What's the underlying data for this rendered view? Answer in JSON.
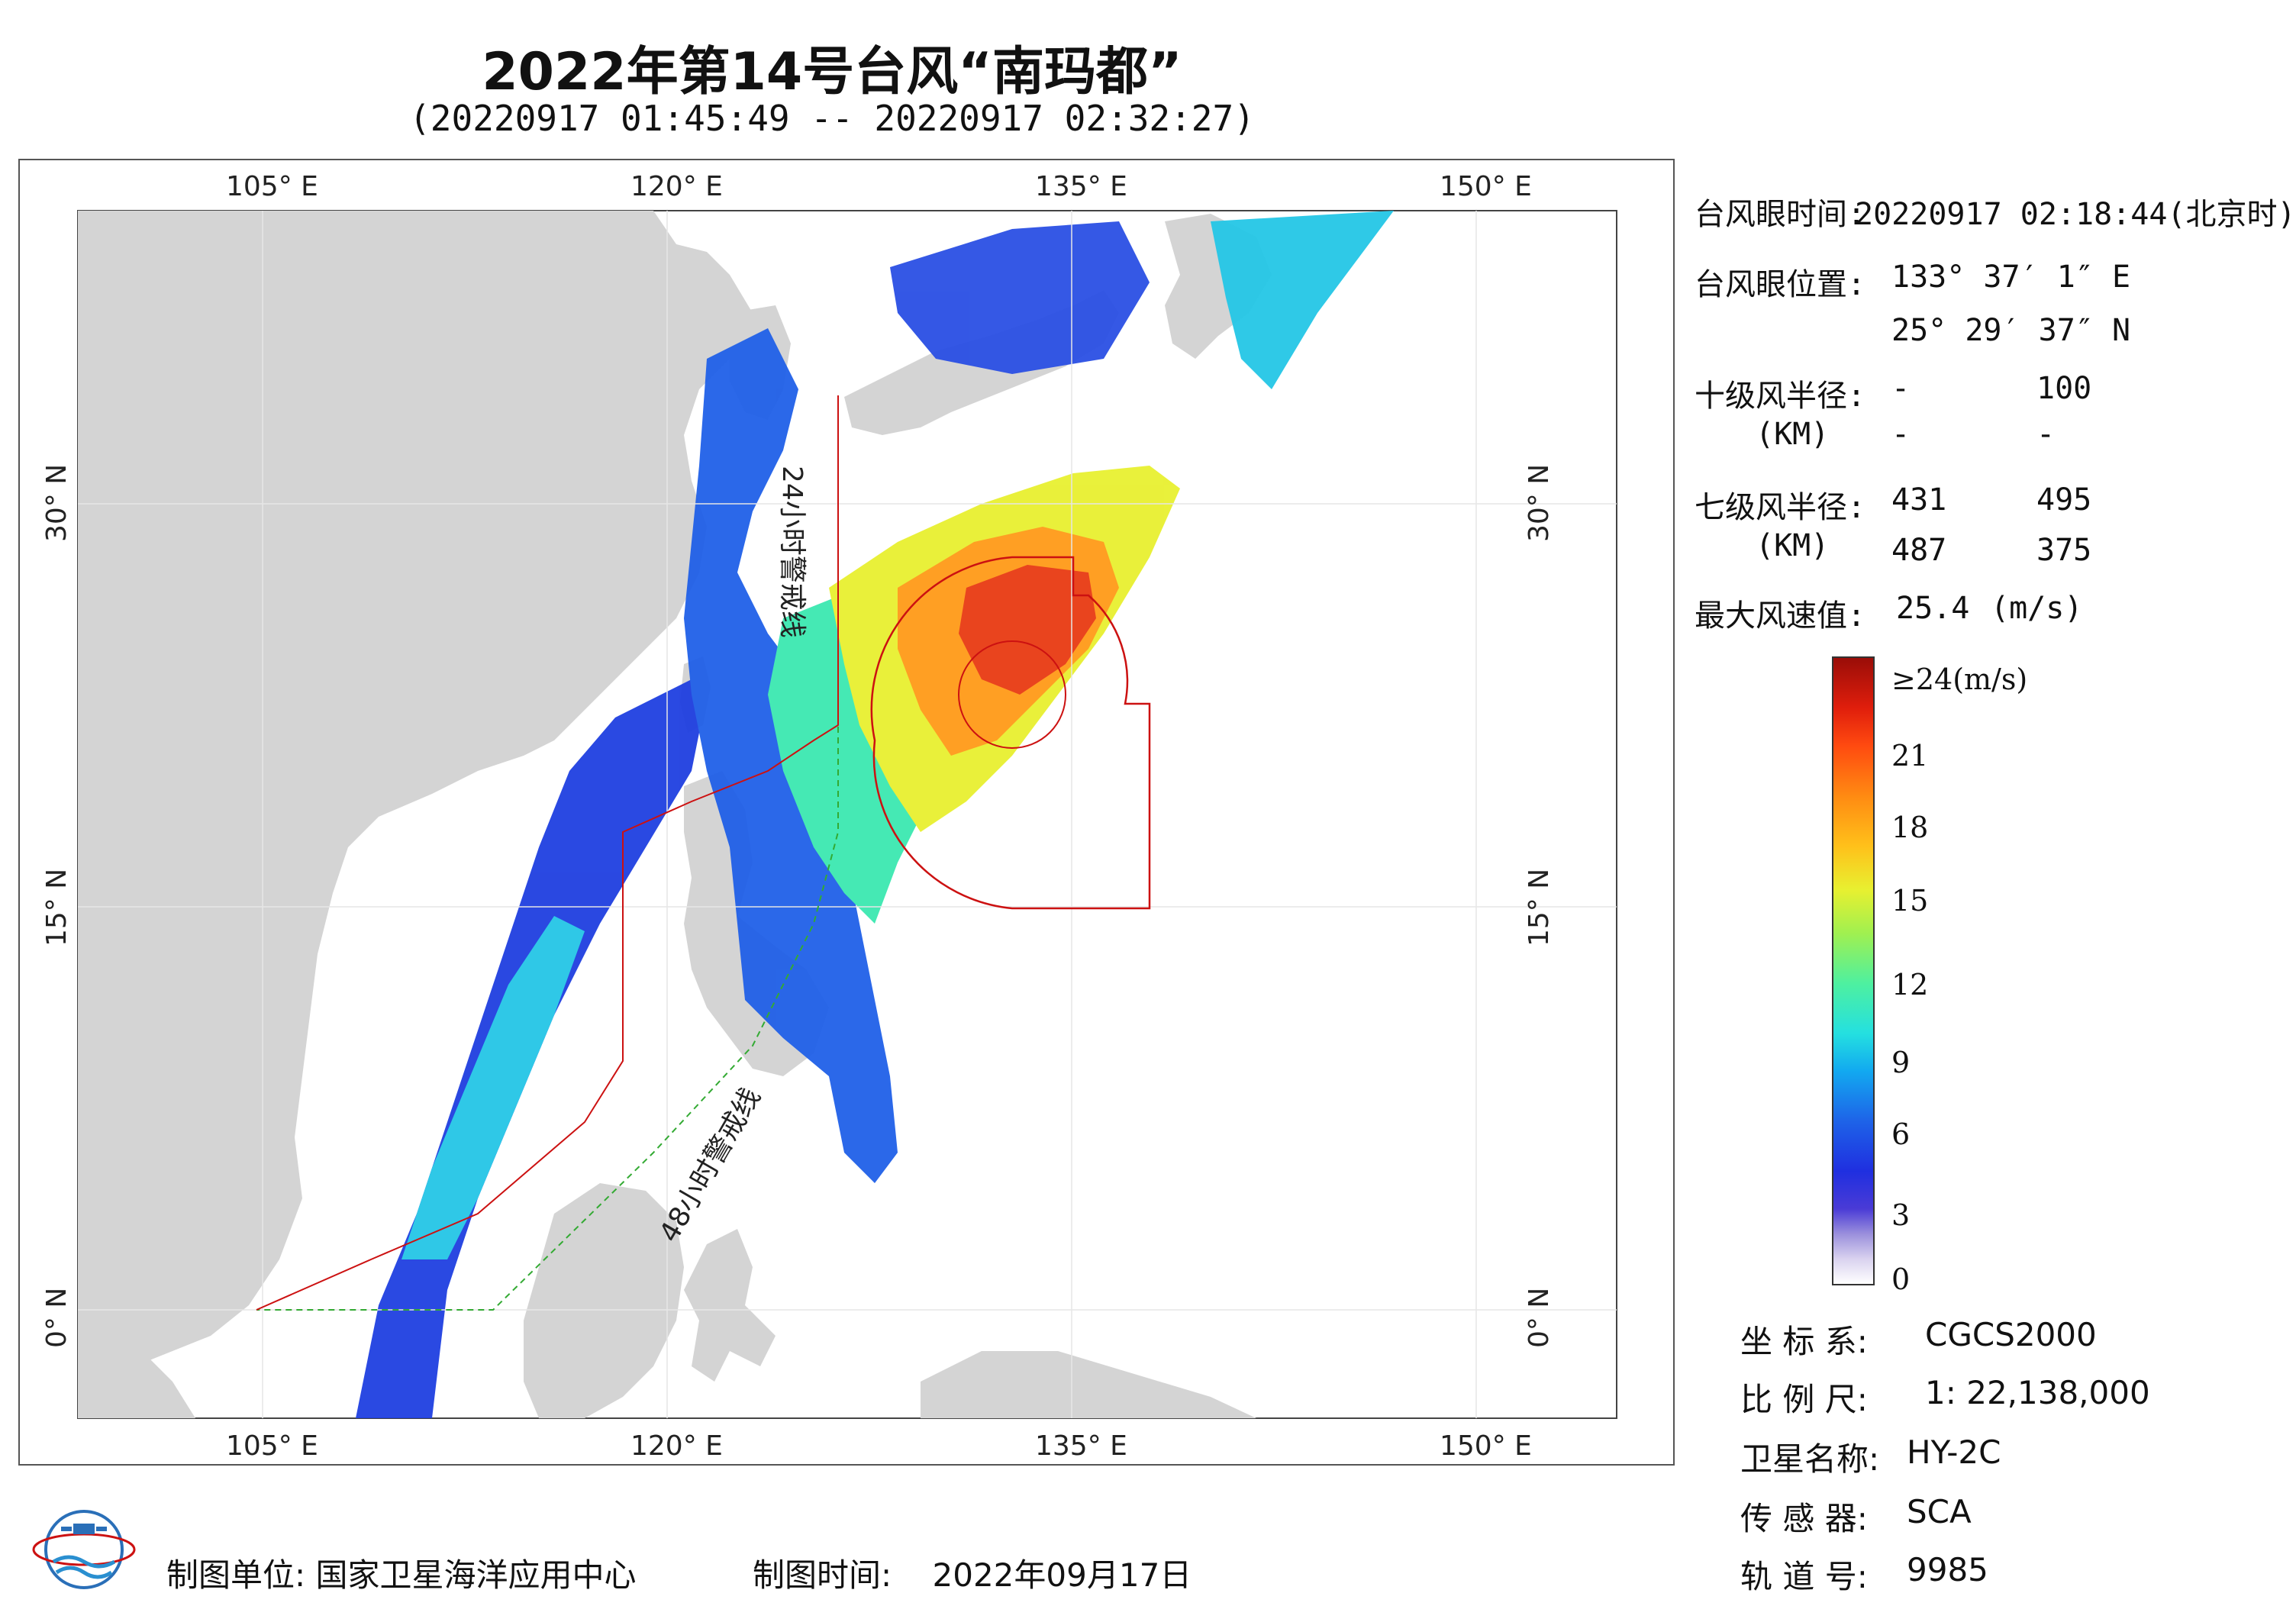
{
  "title": "2022年第14号台风“南玛都”",
  "subtitle": "(20220917 01:45:49 -- 20220917 02:32:27)",
  "map": {
    "top_labels": [
      "105° E",
      "120° E",
      "135° E",
      "150° E"
    ],
    "bottom_labels": [
      "105° E",
      "120° E",
      "135° E",
      "150° E"
    ],
    "left_labels": [
      "30° N",
      "15° N",
      "0° N"
    ],
    "right_labels": [
      "30° N",
      "15° N",
      "0° N"
    ],
    "line_label_24h": "24小时警戒线",
    "line_label_48h": "48小时警戒线",
    "colors": {
      "land": "#d4d4d4",
      "sea": "#ffffff",
      "warning_24h": "#cc1111",
      "warning_48h": "#33aa33",
      "wind_circle": "#cc1111"
    }
  },
  "info": {
    "eye_time_label": "台风眼时间:",
    "eye_time_value": "20220917 02:18:44(北京时)",
    "eye_pos_label": "台风眼位置:",
    "eye_lon": "133° 37′ 1″ E",
    "eye_lat": "25° 29′ 37″ N",
    "r10_label": "十级风半径:",
    "r10_unit": "(KM)",
    "r10_values": [
      "-",
      "100",
      "-",
      "-"
    ],
    "r7_label": "七级风半径:",
    "r7_unit": "(KM)",
    "r7_values": [
      "431",
      "495",
      "487",
      "375"
    ],
    "max_wind_label": "最大风速值:",
    "max_wind_value": "25.4",
    "max_wind_unit": "(m/s)"
  },
  "colorbar": {
    "top_label": "≥24(m/s)",
    "labels": [
      "21",
      "18",
      "15",
      "12",
      "9",
      "6",
      "3",
      "0"
    ]
  },
  "meta": {
    "crs_label": "坐 标 系:",
    "crs_value": "CGCS2000",
    "scale_label": "比 例 尺:",
    "scale_value": "1: 22,138,000",
    "satellite_label": "卫星名称:",
    "satellite_value": "HY-2C",
    "sensor_label": "传 感 器:",
    "sensor_value": "SCA",
    "orbit_label": "轨 道 号:",
    "orbit_value": "9985"
  },
  "footer": {
    "org_label": "制图单位:",
    "org_value": "国家卫星海洋应用中心",
    "time_label": "制图时间:",
    "time_value": "2022年09月17日"
  }
}
